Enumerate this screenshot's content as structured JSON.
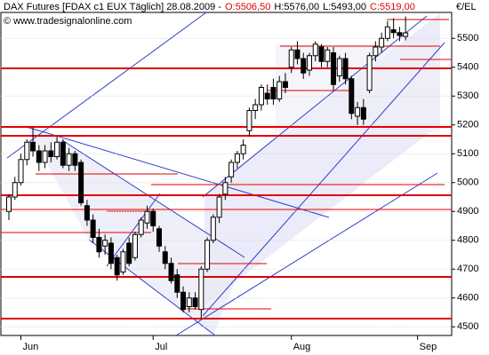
{
  "chart_data": {
    "type": "candlestick",
    "title": "DAX Futures [FDAX c1 EUX  Täglich] 28.08.2009 -",
    "info": [
      {
        "text": "O:5506,50",
        "color": "#e00000"
      },
      {
        "text": "H:5576,00",
        "color": "#000000"
      },
      {
        "text": "L:5493,00",
        "color": "#000000"
      },
      {
        "text": "C:5519,00",
        "color": "#e00000"
      }
    ],
    "source": "© www.tradesignalonline.com",
    "y_label": "€/EL",
    "categories": [
      null,
      null,
      "Jun",
      null,
      null,
      null,
      null,
      null,
      null,
      null,
      null,
      null,
      null,
      null,
      null,
      null,
      null,
      null,
      null,
      null,
      null,
      null,
      null,
      null,
      "Jul",
      null,
      null,
      null,
      null,
      null,
      null,
      null,
      null,
      null,
      null,
      null,
      null,
      null,
      null,
      null,
      null,
      null,
      null,
      null,
      null,
      null,
      null,
      "Aug",
      null,
      null,
      null,
      null,
      null,
      null,
      null,
      null,
      null,
      null,
      null,
      null,
      null,
      null,
      null,
      null,
      null,
      null,
      null,
      null,
      "Sep"
    ],
    "open": [
      4900,
      4950,
      5000,
      5080,
      5140,
      5110,
      5070,
      5110,
      5090,
      5140,
      5060,
      5100,
      5070,
      4920,
      4870,
      4810,
      4780,
      4790,
      4740,
      4690,
      4790,
      4740,
      4820,
      4860,
      4900,
      4840,
      4760,
      4720,
      4680,
      4620,
      4570,
      4600,
      4560,
      4700,
      4800,
      4880,
      4960,
      5020,
      5070,
      5100,
      5180,
      5250,
      5270,
      5310,
      5330,
      5290,
      5350,
      5400,
      5460,
      5430,
      5390,
      5440,
      5470,
      5420,
      5450,
      5370,
      5430,
      5360,
      5230,
      5260,
      5320,
      5440,
      5470,
      5500,
      5530,
      5520,
      5506.5,
      null,
      null
    ],
    "high": [
      4960,
      5020,
      5100,
      5150,
      5190,
      5130,
      5130,
      5140,
      5160,
      5150,
      5120,
      5110,
      5080,
      4940,
      4890,
      4840,
      4820,
      4810,
      4750,
      4770,
      4810,
      4830,
      4880,
      4920,
      4910,
      4850,
      4780,
      4740,
      4700,
      4640,
      4620,
      4620,
      4710,
      4810,
      4890,
      4960,
      5020,
      5080,
      5110,
      5150,
      5260,
      5290,
      5340,
      5340,
      5360,
      5370,
      5380,
      5470,
      5490,
      5450,
      5450,
      5490,
      5480,
      5470,
      5470,
      5440,
      5450,
      5370,
      5280,
      5290,
      5450,
      5490,
      5520,
      5560,
      5570,
      5540,
      5576,
      null,
      null
    ],
    "low": [
      4870,
      4940,
      4990,
      5060,
      5090,
      5040,
      5050,
      5070,
      5080,
      5050,
      5040,
      5040,
      4920,
      4850,
      4790,
      4740,
      4750,
      4700,
      4660,
      4680,
      4710,
      4730,
      4810,
      4840,
      4830,
      4760,
      4700,
      4650,
      4600,
      4550,
      4550,
      4560,
      4530,
      4690,
      4790,
      4860,
      4940,
      5000,
      5050,
      5080,
      5160,
      5220,
      5250,
      5270,
      5270,
      5280,
      5310,
      5380,
      5410,
      5360,
      5370,
      5420,
      5400,
      5400,
      5320,
      5350,
      5340,
      5220,
      5200,
      5200,
      5310,
      5420,
      5450,
      5490,
      5500,
      5490,
      5493,
      null,
      null
    ],
    "close": [
      4950,
      5000,
      5080,
      5140,
      5110,
      5070,
      5110,
      5090,
      5140,
      5060,
      5100,
      5060,
      4930,
      4870,
      4810,
      4760,
      4800,
      4720,
      4680,
      4760,
      4720,
      4820,
      4870,
      4900,
      4850,
      4780,
      4720,
      4660,
      4620,
      4560,
      4600,
      4570,
      4700,
      4800,
      4880,
      4950,
      5000,
      5070,
      5100,
      5130,
      5250,
      5270,
      5330,
      5290,
      5290,
      5350,
      5330,
      5460,
      5430,
      5380,
      5440,
      5480,
      5420,
      5460,
      5340,
      5430,
      5360,
      5240,
      5260,
      5220,
      5440,
      5470,
      5500,
      5540,
      5520,
      5510,
      5519,
      null,
      null
    ],
    "ylim": [
      4470,
      5590
    ],
    "yticks": [
      4500,
      4600,
      4700,
      4800,
      4900,
      5000,
      5100,
      5200,
      5300,
      5400,
      5500
    ],
    "grid": true,
    "up_color": "#ffffff",
    "down_color": "#000000"
  }
}
